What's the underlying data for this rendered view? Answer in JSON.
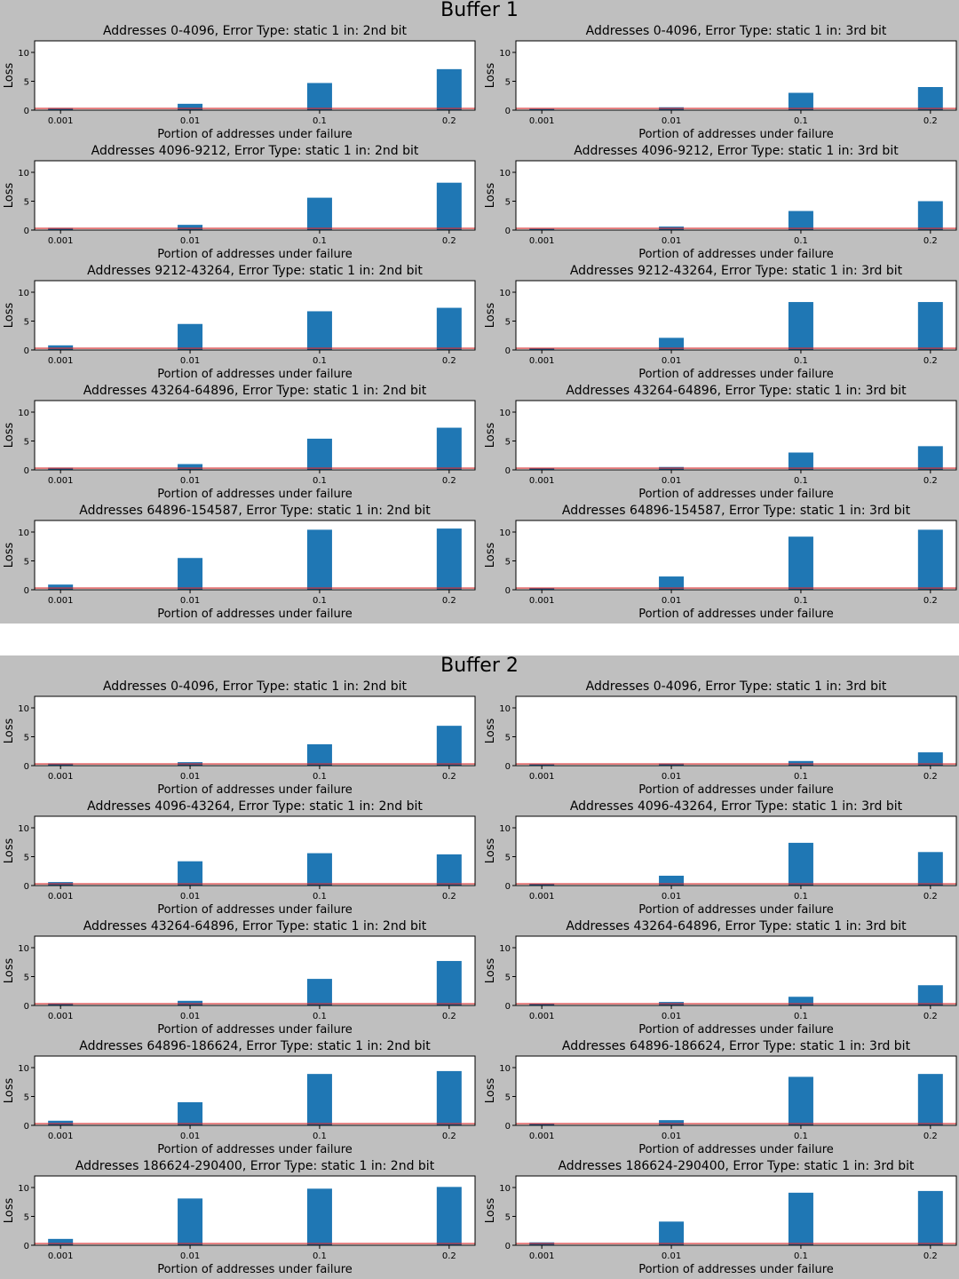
{
  "buffers": [
    {
      "title": "Buffer 1",
      "subplots": [
        {
          "title": "Addresses 0-4096, Error Type: static 1 in: 2nd bit"
        },
        {
          "title": "Addresses 0-4096, Error Type: static 1 in: 3rd bit"
        },
        {
          "title": "Addresses 4096-9212, Error Type: static 1 in: 2nd bit"
        },
        {
          "title": "Addresses 4096-9212, Error Type: static 1 in: 3rd bit"
        },
        {
          "title": "Addresses 9212-43264, Error Type: static 1 in: 2nd bit"
        },
        {
          "title": "Addresses 9212-43264, Error Type: static 1 in: 3rd bit"
        },
        {
          "title": "Addresses 43264-64896, Error Type: static 1 in: 2nd bit"
        },
        {
          "title": "Addresses 43264-64896, Error Type: static 1 in: 3rd bit"
        },
        {
          "title": "Addresses 64896-154587, Error Type: static 1 in: 2nd bit"
        },
        {
          "title": "Addresses 64896-154587, Error Type: static 1 in: 3rd bit"
        }
      ]
    },
    {
      "title": "Buffer 2",
      "subplots": [
        {
          "title": "Addresses 0-4096, Error Type: static 1 in: 2nd bit"
        },
        {
          "title": "Addresses 0-4096, Error Type: static 1 in: 3rd bit"
        },
        {
          "title": "Addresses 4096-43264, Error Type: static 1 in: 2nd bit"
        },
        {
          "title": "Addresses 4096-43264, Error Type: static 1 in: 3rd bit"
        },
        {
          "title": "Addresses 43264-64896, Error Type: static 1 in: 2nd bit"
        },
        {
          "title": "Addresses 43264-64896, Error Type: static 1 in: 3rd bit"
        },
        {
          "title": "Addresses 64896-186624, Error Type: static 1 in: 2nd bit"
        },
        {
          "title": "Addresses 64896-186624, Error Type: static 1 in: 3rd bit"
        },
        {
          "title": "Addresses 186624-290400, Error Type: static 1 in: 2nd bit"
        },
        {
          "title": "Addresses 186624-290400, Error Type: static 1 in: 3rd bit"
        }
      ]
    }
  ],
  "colors": {
    "panel_bg": "#bfbfbf",
    "bar": "#1f77b4",
    "baseline": "#d62728",
    "plot_bg": "#ffffff"
  },
  "chart_data": [
    {
      "type": "bar",
      "buffer": "Buffer 1",
      "title": "Addresses 0-4096, Error Type: static 1 in: 2nd bit",
      "categories": [
        "0.001",
        "0.01",
        "0.1",
        "0.2"
      ],
      "values": [
        0.4,
        1.1,
        4.7,
        7.1
      ],
      "baseline": 0.3,
      "xlabel": "Portion of addresses under failure",
      "ylabel": "Loss",
      "ylim": [
        0,
        12
      ],
      "yticks": [
        0,
        5,
        10
      ],
      "grid": false
    },
    {
      "type": "bar",
      "buffer": "Buffer 1",
      "title": "Addresses 0-4096, Error Type: static 1 in: 3rd bit",
      "categories": [
        "0.001",
        "0.01",
        "0.1",
        "0.2"
      ],
      "values": [
        0.2,
        0.5,
        3.0,
        4.0
      ],
      "baseline": 0.3,
      "xlabel": "Portion of addresses under failure",
      "ylabel": "Loss",
      "ylim": [
        0,
        12
      ],
      "yticks": [
        0,
        5,
        10
      ],
      "grid": false
    },
    {
      "type": "bar",
      "buffer": "Buffer 1",
      "title": "Addresses 4096-9212, Error Type: static 1 in: 2nd bit",
      "categories": [
        "0.001",
        "0.01",
        "0.1",
        "0.2"
      ],
      "values": [
        0.4,
        0.9,
        5.6,
        8.2
      ],
      "baseline": 0.3,
      "xlabel": "Portion of addresses under failure",
      "ylabel": "Loss",
      "ylim": [
        0,
        12
      ],
      "yticks": [
        0,
        5,
        10
      ],
      "grid": false
    },
    {
      "type": "bar",
      "buffer": "Buffer 1",
      "title": "Addresses 4096-9212, Error Type: static 1 in: 3rd bit",
      "categories": [
        "0.001",
        "0.01",
        "0.1",
        "0.2"
      ],
      "values": [
        0.2,
        0.6,
        3.3,
        5.0
      ],
      "baseline": 0.3,
      "xlabel": "Portion of addresses under failure",
      "ylabel": "Loss",
      "ylim": [
        0,
        12
      ],
      "yticks": [
        0,
        5,
        10
      ],
      "grid": false
    },
    {
      "type": "bar",
      "buffer": "Buffer 1",
      "title": "Addresses 9212-43264, Error Type: static 1 in: 2nd bit",
      "categories": [
        "0.001",
        "0.01",
        "0.1",
        "0.2"
      ],
      "values": [
        0.8,
        4.5,
        6.7,
        7.3
      ],
      "baseline": 0.3,
      "xlabel": "Portion of addresses under failure",
      "ylabel": "Loss",
      "ylim": [
        0,
        12
      ],
      "yticks": [
        0,
        5,
        10
      ],
      "grid": false
    },
    {
      "type": "bar",
      "buffer": "Buffer 1",
      "title": "Addresses 9212-43264, Error Type: static 1 in: 3rd bit",
      "categories": [
        "0.001",
        "0.01",
        "0.1",
        "0.2"
      ],
      "values": [
        0.3,
        2.1,
        8.3,
        8.3
      ],
      "baseline": 0.3,
      "xlabel": "Portion of addresses under failure",
      "ylabel": "Loss",
      "ylim": [
        0,
        12
      ],
      "yticks": [
        0,
        5,
        10
      ],
      "grid": false
    },
    {
      "type": "bar",
      "buffer": "Buffer 1",
      "title": "Addresses 43264-64896, Error Type: static 1 in: 2nd bit",
      "categories": [
        "0.001",
        "0.01",
        "0.1",
        "0.2"
      ],
      "values": [
        0.4,
        1.0,
        5.4,
        7.3
      ],
      "baseline": 0.3,
      "xlabel": "Portion of addresses under failure",
      "ylabel": "Loss",
      "ylim": [
        0,
        12
      ],
      "yticks": [
        0,
        5,
        10
      ],
      "grid": false
    },
    {
      "type": "bar",
      "buffer": "Buffer 1",
      "title": "Addresses 43264-64896, Error Type: static 1 in: 3rd bit",
      "categories": [
        "0.001",
        "0.01",
        "0.1",
        "0.2"
      ],
      "values": [
        0.3,
        0.5,
        3.0,
        4.1
      ],
      "baseline": 0.3,
      "xlabel": "Portion of addresses under failure",
      "ylabel": "Loss",
      "ylim": [
        0,
        12
      ],
      "yticks": [
        0,
        5,
        10
      ],
      "grid": false
    },
    {
      "type": "bar",
      "buffer": "Buffer 1",
      "title": "Addresses 64896-154587, Error Type: static 1 in: 2nd bit",
      "categories": [
        "0.001",
        "0.01",
        "0.1",
        "0.2"
      ],
      "values": [
        0.9,
        5.5,
        10.4,
        10.6
      ],
      "baseline": 0.3,
      "xlabel": "Portion of addresses under failure",
      "ylabel": "Loss",
      "ylim": [
        0,
        12
      ],
      "yticks": [
        0,
        5,
        10
      ],
      "grid": false
    },
    {
      "type": "bar",
      "buffer": "Buffer 1",
      "title": "Addresses 64896-154587, Error Type: static 1 in: 3rd bit",
      "categories": [
        "0.001",
        "0.01",
        "0.1",
        "0.2"
      ],
      "values": [
        0.3,
        2.3,
        9.2,
        10.4
      ],
      "baseline": 0.3,
      "xlabel": "Portion of addresses under failure",
      "ylabel": "Loss",
      "ylim": [
        0,
        12
      ],
      "yticks": [
        0,
        5,
        10
      ],
      "grid": false
    },
    {
      "type": "bar",
      "buffer": "Buffer 2",
      "title": "Addresses 0-4096, Error Type: static 1 in: 2nd bit",
      "categories": [
        "0.001",
        "0.01",
        "0.1",
        "0.2"
      ],
      "values": [
        0.4,
        0.6,
        3.7,
        6.9
      ],
      "baseline": 0.3,
      "xlabel": "Portion of addresses under failure",
      "ylabel": "Loss",
      "ylim": [
        0,
        12
      ],
      "yticks": [
        0,
        5,
        10
      ],
      "grid": false
    },
    {
      "type": "bar",
      "buffer": "Buffer 2",
      "title": "Addresses 0-4096, Error Type: static 1 in: 3rd bit",
      "categories": [
        "0.001",
        "0.01",
        "0.1",
        "0.2"
      ],
      "values": [
        0.2,
        0.4,
        0.8,
        2.3
      ],
      "baseline": 0.3,
      "xlabel": "Portion of addresses under failure",
      "ylabel": "Loss",
      "ylim": [
        0,
        12
      ],
      "yticks": [
        0,
        5,
        10
      ],
      "grid": false
    },
    {
      "type": "bar",
      "buffer": "Buffer 2",
      "title": "Addresses 4096-43264, Error Type: static 1 in: 2nd bit",
      "categories": [
        "0.001",
        "0.01",
        "0.1",
        "0.2"
      ],
      "values": [
        0.6,
        4.2,
        5.6,
        5.4
      ],
      "baseline": 0.3,
      "xlabel": "Portion of addresses under failure",
      "ylabel": "Loss",
      "ylim": [
        0,
        12
      ],
      "yticks": [
        0,
        5,
        10
      ],
      "grid": false
    },
    {
      "type": "bar",
      "buffer": "Buffer 2",
      "title": "Addresses 4096-43264, Error Type: static 1 in: 3rd bit",
      "categories": [
        "0.001",
        "0.01",
        "0.1",
        "0.2"
      ],
      "values": [
        0.3,
        1.7,
        7.4,
        5.8
      ],
      "baseline": 0.3,
      "xlabel": "Portion of addresses under failure",
      "ylabel": "Loss",
      "ylim": [
        0,
        12
      ],
      "yticks": [
        0,
        5,
        10
      ],
      "grid": false
    },
    {
      "type": "bar",
      "buffer": "Buffer 2",
      "title": "Addresses 43264-64896, Error Type: static 1 in: 2nd bit",
      "categories": [
        "0.001",
        "0.01",
        "0.1",
        "0.2"
      ],
      "values": [
        0.4,
        0.8,
        4.6,
        7.7
      ],
      "baseline": 0.3,
      "xlabel": "Portion of addresses under failure",
      "ylabel": "Loss",
      "ylim": [
        0,
        12
      ],
      "yticks": [
        0,
        5,
        10
      ],
      "grid": false
    },
    {
      "type": "bar",
      "buffer": "Buffer 2",
      "title": "Addresses 43264-64896, Error Type: static 1 in: 3rd bit",
      "categories": [
        "0.001",
        "0.01",
        "0.1",
        "0.2"
      ],
      "values": [
        0.3,
        0.6,
        1.5,
        3.5
      ],
      "baseline": 0.3,
      "xlabel": "Portion of addresses under failure",
      "ylabel": "Loss",
      "ylim": [
        0,
        12
      ],
      "yticks": [
        0,
        5,
        10
      ],
      "grid": false
    },
    {
      "type": "bar",
      "buffer": "Buffer 2",
      "title": "Addresses 64896-186624, Error Type: static 1 in: 2nd bit",
      "categories": [
        "0.001",
        "0.01",
        "0.1",
        "0.2"
      ],
      "values": [
        0.8,
        4.0,
        8.9,
        9.4
      ],
      "baseline": 0.3,
      "xlabel": "Portion of addresses under failure",
      "ylabel": "Loss",
      "ylim": [
        0,
        12
      ],
      "yticks": [
        0,
        5,
        10
      ],
      "grid": false
    },
    {
      "type": "bar",
      "buffer": "Buffer 2",
      "title": "Addresses 64896-186624, Error Type: static 1 in: 3rd bit",
      "categories": [
        "0.001",
        "0.01",
        "0.1",
        "0.2"
      ],
      "values": [
        0.3,
        0.9,
        8.4,
        8.9
      ],
      "baseline": 0.3,
      "xlabel": "Portion of addresses under failure",
      "ylabel": "Loss",
      "ylim": [
        0,
        12
      ],
      "yticks": [
        0,
        5,
        10
      ],
      "grid": false
    },
    {
      "type": "bar",
      "buffer": "Buffer 2",
      "title": "Addresses 186624-290400, Error Type: static 1 in: 2nd bit",
      "categories": [
        "0.001",
        "0.01",
        "0.1",
        "0.2"
      ],
      "values": [
        1.1,
        8.1,
        9.8,
        10.1
      ],
      "baseline": 0.3,
      "xlabel": "Portion of addresses under failure",
      "ylabel": "Loss",
      "ylim": [
        0,
        12
      ],
      "yticks": [
        0,
        5,
        10
      ],
      "grid": false
    },
    {
      "type": "bar",
      "buffer": "Buffer 2",
      "title": "Addresses 186624-290400, Error Type: static 1 in: 3rd bit",
      "categories": [
        "0.001",
        "0.01",
        "0.1",
        "0.2"
      ],
      "values": [
        0.5,
        4.1,
        9.1,
        9.4
      ],
      "baseline": 0.3,
      "xlabel": "Portion of addresses under failure",
      "ylabel": "Loss",
      "ylim": [
        0,
        12
      ],
      "yticks": [
        0,
        5,
        10
      ],
      "grid": false
    }
  ]
}
